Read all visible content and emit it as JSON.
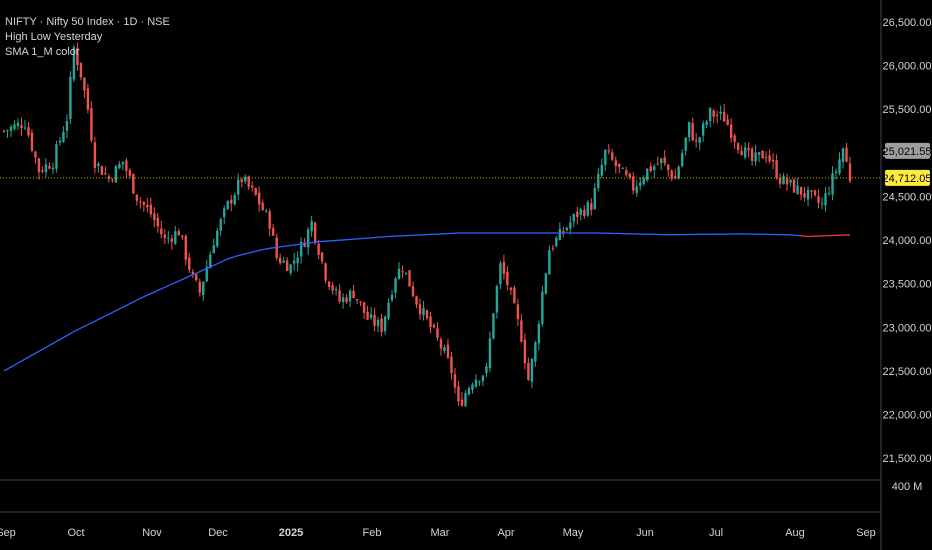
{
  "header": {
    "symbol_line": "NIFTY · Nifty 50 Index · 1D · NSE",
    "indicator_1": "High Low Yesterday",
    "indicator_2": "SMA 1_M color"
  },
  "colors": {
    "background": "#000000",
    "up": "#26a69a",
    "down": "#ef5350",
    "sma_above": "#2962ff",
    "sma_below": "#f23645",
    "price_badge": "#ffeb3b",
    "prev_badge": "#9e9e9e"
  },
  "chart_data": {
    "type": "candlestick",
    "ylim": [
      21250,
      26750
    ],
    "y_ticks": [
      "26,500.00",
      "26,000.00",
      "25,500.00",
      "25,000.00",
      "24,500.00",
      "24,000.00",
      "23,500.00",
      "23,000.00",
      "22,500.00",
      "22,000.00",
      "21,500.00"
    ],
    "y_tick_values": [
      26500,
      26000,
      25500,
      25000,
      24500,
      24000,
      23500,
      23000,
      22500,
      22000,
      21500
    ],
    "x_ticks": [
      {
        "label": "Sep",
        "bold": false
      },
      {
        "label": "Oct",
        "bold": false
      },
      {
        "label": "Nov",
        "bold": false
      },
      {
        "label": "Dec",
        "bold": false
      },
      {
        "label": "2025",
        "bold": true
      },
      {
        "label": "Feb",
        "bold": false
      },
      {
        "label": "Mar",
        "bold": false
      },
      {
        "label": "Apr",
        "bold": false
      },
      {
        "label": "May",
        "bold": false
      },
      {
        "label": "Jun",
        "bold": false
      },
      {
        "label": "Jul",
        "bold": false
      },
      {
        "label": "Aug",
        "bold": false
      },
      {
        "label": "Sep",
        "bold": false
      }
    ],
    "last_price": 24712.05,
    "last_price_label": "24,712.05",
    "prev_level": 25021.55,
    "prev_level_label": "25,021.55",
    "volume_label": "400 M",
    "close_path": [
      [
        0,
        25250
      ],
      [
        6,
        25350
      ],
      [
        10,
        24800
      ],
      [
        14,
        24900
      ],
      [
        18,
        25400
      ],
      [
        20,
        26200
      ],
      [
        22,
        25900
      ],
      [
        24,
        25500
      ],
      [
        26,
        24900
      ],
      [
        30,
        24700
      ],
      [
        34,
        24900
      ],
      [
        38,
        24500
      ],
      [
        42,
        24300
      ],
      [
        46,
        24000
      ],
      [
        50,
        24100
      ],
      [
        54,
        23550
      ],
      [
        56,
        23400
      ],
      [
        60,
        24000
      ],
      [
        64,
        24400
      ],
      [
        68,
        24700
      ],
      [
        72,
        24500
      ],
      [
        76,
        24200
      ],
      [
        78,
        23800
      ],
      [
        82,
        23700
      ],
      [
        86,
        24000
      ],
      [
        88,
        24200
      ],
      [
        92,
        23600
      ],
      [
        96,
        23300
      ],
      [
        100,
        23400
      ],
      [
        104,
        23100
      ],
      [
        108,
        23000
      ],
      [
        112,
        23600
      ],
      [
        114,
        23700
      ],
      [
        118,
        23300
      ],
      [
        122,
        23000
      ],
      [
        126,
        22700
      ],
      [
        128,
        22500
      ],
      [
        130,
        22100
      ],
      [
        134,
        22400
      ],
      [
        138,
        22500
      ],
      [
        140,
        23200
      ],
      [
        142,
        23700
      ],
      [
        144,
        23500
      ],
      [
        146,
        23200
      ],
      [
        148,
        22900
      ],
      [
        150,
        22400
      ],
      [
        152,
        22800
      ],
      [
        154,
        23400
      ],
      [
        156,
        23900
      ],
      [
        160,
        24100
      ],
      [
        164,
        24300
      ],
      [
        168,
        24400
      ],
      [
        172,
        25000
      ],
      [
        176,
        24800
      ],
      [
        180,
        24600
      ],
      [
        184,
        24800
      ],
      [
        188,
        24900
      ],
      [
        192,
        24700
      ],
      [
        196,
        25300
      ],
      [
        198,
        25100
      ],
      [
        202,
        25450
      ],
      [
        206,
        25400
      ],
      [
        210,
        25100
      ],
      [
        214,
        24900
      ],
      [
        218,
        25000
      ],
      [
        222,
        24700
      ],
      [
        226,
        24600
      ],
      [
        230,
        24500
      ],
      [
        234,
        24400
      ],
      [
        238,
        24800
      ],
      [
        240,
        25050
      ],
      [
        242,
        24712
      ]
    ],
    "sma_path": [
      [
        0,
        22500
      ],
      [
        20,
        22950
      ],
      [
        40,
        23350
      ],
      [
        55,
        23620
      ],
      [
        65,
        23800
      ],
      [
        75,
        23900
      ],
      [
        90,
        23980
      ],
      [
        110,
        24040
      ],
      [
        130,
        24080
      ],
      [
        150,
        24080
      ],
      [
        170,
        24080
      ],
      [
        190,
        24060
      ],
      [
        210,
        24070
      ],
      [
        225,
        24060
      ],
      [
        230,
        24040
      ],
      [
        242,
        24060
      ]
    ],
    "sma_below_from": 228
  }
}
